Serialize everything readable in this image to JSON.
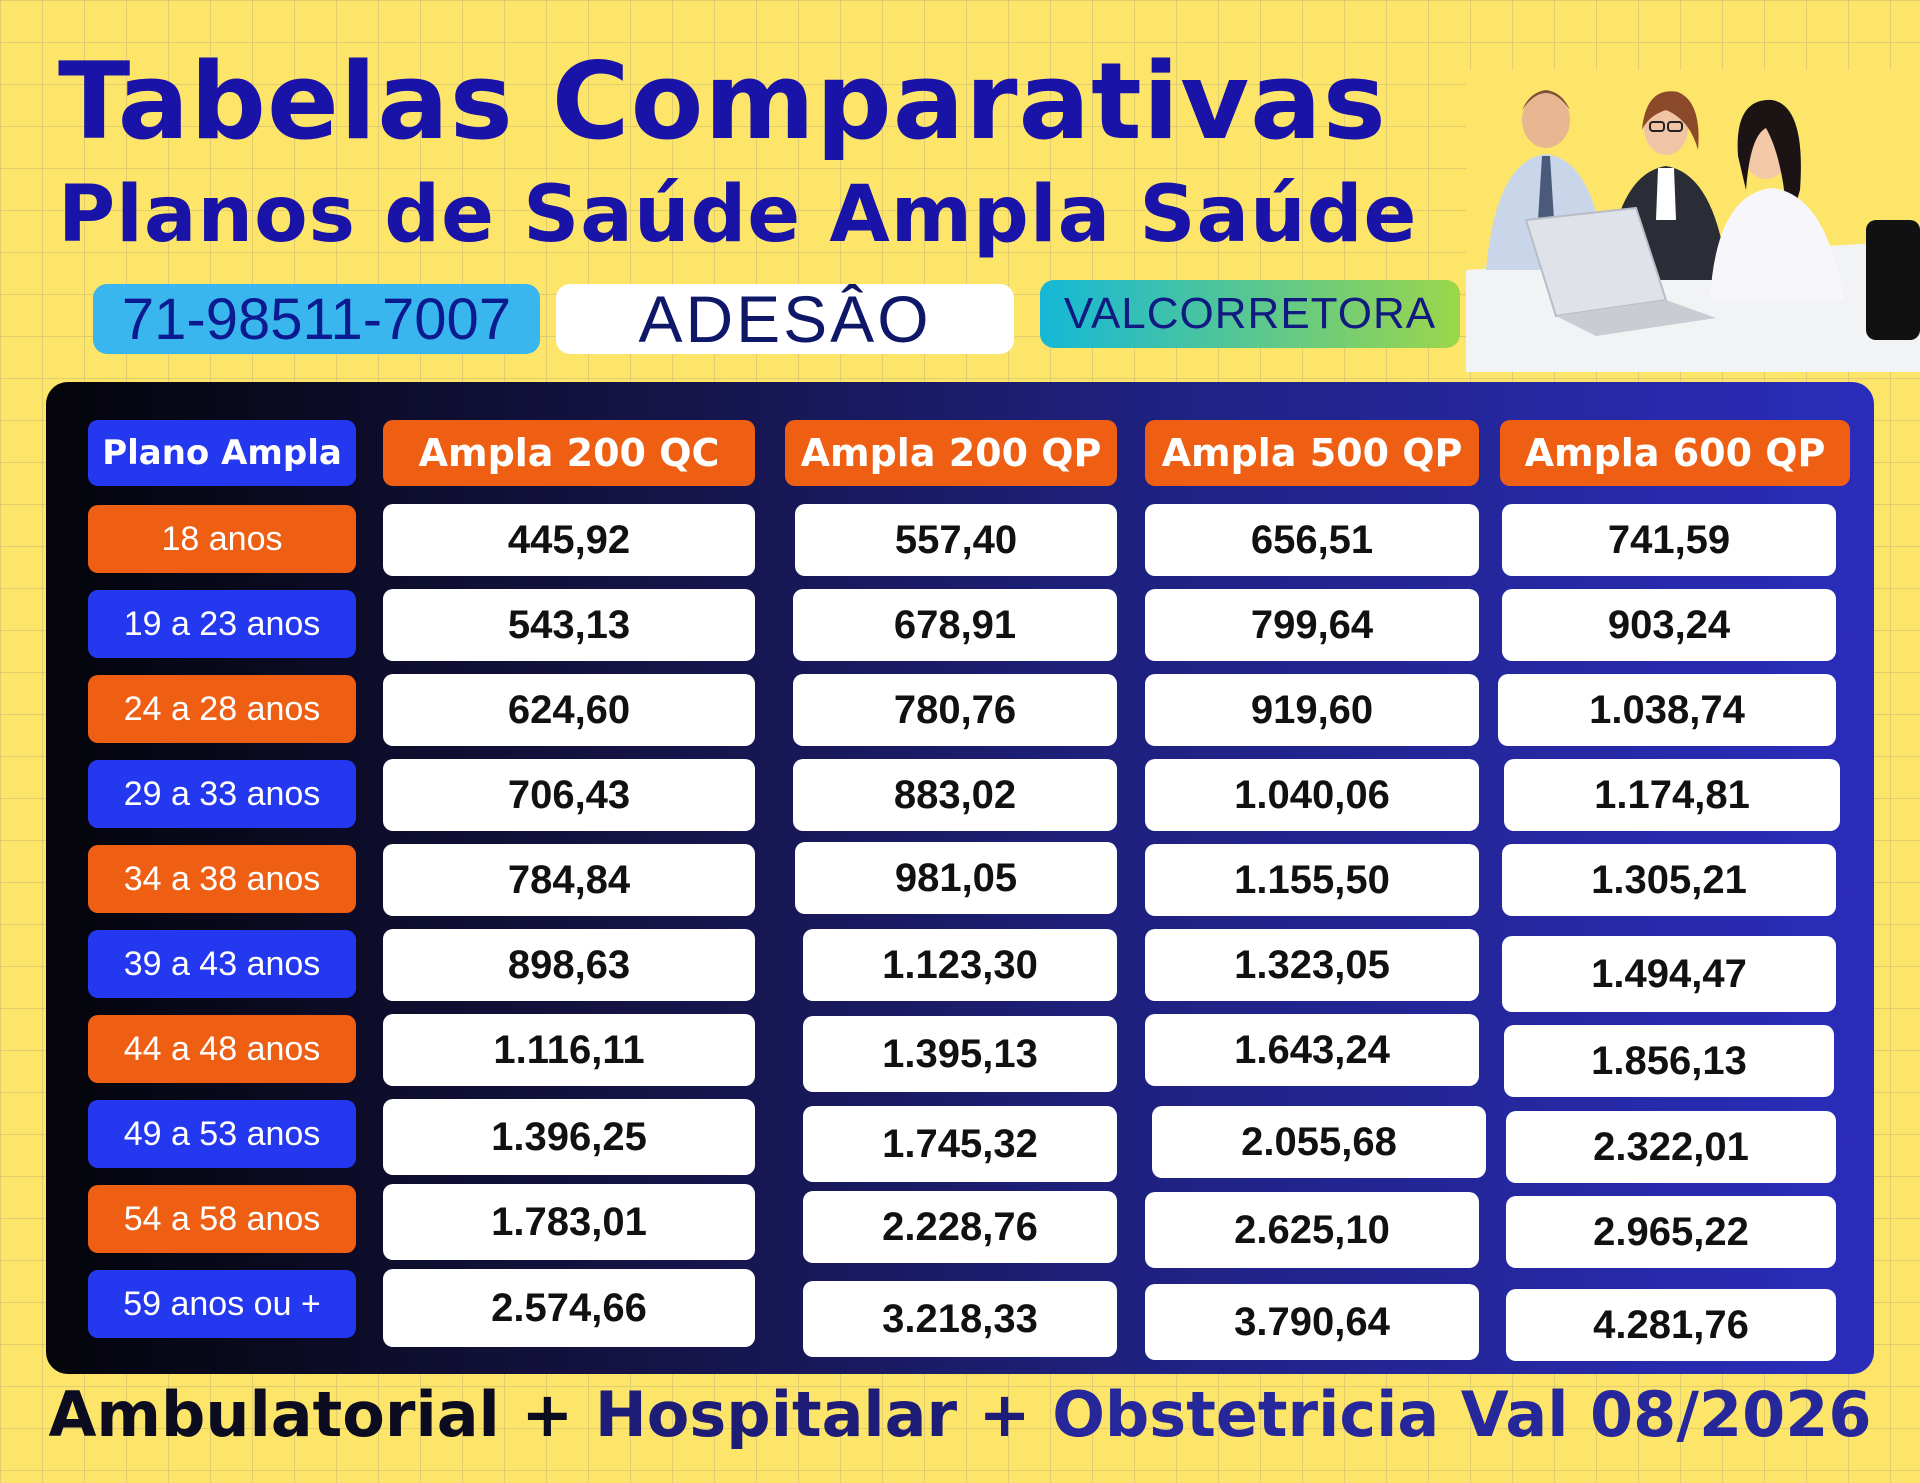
{
  "header": {
    "title_line1": "Tabelas Comparativas",
    "title_line2": "Planos de Saúde Ampla Saúde",
    "phone": "71-98511-7007",
    "modality": "ADESÂO",
    "broker": "VALCORRETORA"
  },
  "table": {
    "row_header": "Plano Ampla",
    "columns": [
      "Ampla 200 QC",
      "Ampla 200 QP",
      "Ampla 500 QP",
      "Ampla 600 QP"
    ],
    "rows": [
      {
        "age": "18 anos",
        "values": [
          "445,92",
          "557,40",
          "656,51",
          "741,59"
        ]
      },
      {
        "age": "19 a 23 anos",
        "values": [
          "543,13",
          "678,91",
          "799,64",
          "903,24"
        ]
      },
      {
        "age": "24 a 28 anos",
        "values": [
          "624,60",
          "780,76",
          "919,60",
          "1.038,74"
        ]
      },
      {
        "age": "29 a 33 anos",
        "values": [
          "706,43",
          "883,02",
          "1.040,06",
          "1.174,81"
        ]
      },
      {
        "age": "34 a 38 anos",
        "values": [
          "784,84",
          "981,05",
          "1.155,50",
          "1.305,21"
        ]
      },
      {
        "age": "39 a 43 anos",
        "values": [
          "898,63",
          "1.123,30",
          "1.323,05",
          "1.494,47"
        ]
      },
      {
        "age": "44 a 48 anos",
        "values": [
          "1.116,11",
          "1.395,13",
          "1.643,24",
          "1.856,13"
        ]
      },
      {
        "age": "49 a 53 anos",
        "values": [
          "1.396,25",
          "1.745,32",
          "2.055,68",
          "2.322,01"
        ]
      },
      {
        "age": "54 a 58 anos",
        "values": [
          "1.783,01",
          "2.228,76",
          "2.625,10",
          "2.965,22"
        ]
      },
      {
        "age": "59 anos ou +",
        "values": [
          "2.574,66",
          "3.218,33",
          "3.790,64",
          "4.281,76"
        ]
      }
    ]
  },
  "footer": {
    "part1": "Ambulatorial + ",
    "part2": "Hospitalar + ",
    "part3": "Obstetricia Val 08/2026"
  },
  "colors": {
    "background": "#fde56a",
    "title": "#1a13a8",
    "orange": "#ee5f14",
    "blue": "#2438f0",
    "phone_pill": "#3ab6ef"
  }
}
